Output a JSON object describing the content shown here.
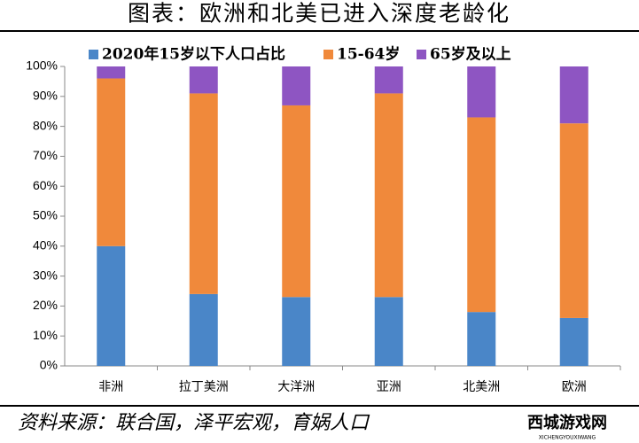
{
  "chart_data": {
    "type": "stacked_bar",
    "title": "图表：欧洲和北美已进入深度老龄化",
    "source": "资料来源：联合国，泽平宏观，育娲人口",
    "watermark": "西城游戏网",
    "watermark_sub": "XICHENGYOUXIWANG",
    "categories": [
      "非洲",
      "拉丁美洲",
      "大洋洲",
      "亚洲",
      "北美洲",
      "欧洲"
    ],
    "series": [
      {
        "name": "2020年15岁以下人口占比",
        "color": "#4a86c8",
        "values": [
          40,
          24,
          23,
          23,
          18,
          16
        ]
      },
      {
        "name": "15-64岁",
        "color": "#f0893b",
        "values": [
          56,
          67,
          64,
          68,
          65,
          65
        ]
      },
      {
        "name": "65岁及以上",
        "color": "#8e55c2",
        "values": [
          4,
          9,
          13,
          9,
          17,
          19
        ]
      }
    ],
    "ylim": [
      0,
      100
    ],
    "yticks": [
      {
        "value": 0,
        "label": "0%"
      },
      {
        "value": 10,
        "label": "10%"
      },
      {
        "value": 20,
        "label": "20%"
      },
      {
        "value": 30,
        "label": "30%"
      },
      {
        "value": 40,
        "label": "40%"
      },
      {
        "value": 50,
        "label": "50%"
      },
      {
        "value": 60,
        "label": "60%"
      },
      {
        "value": 70,
        "label": "70%"
      },
      {
        "value": 80,
        "label": "80%"
      },
      {
        "value": 90,
        "label": "90%"
      },
      {
        "value": 100,
        "label": "100%"
      }
    ],
    "grid": false
  }
}
